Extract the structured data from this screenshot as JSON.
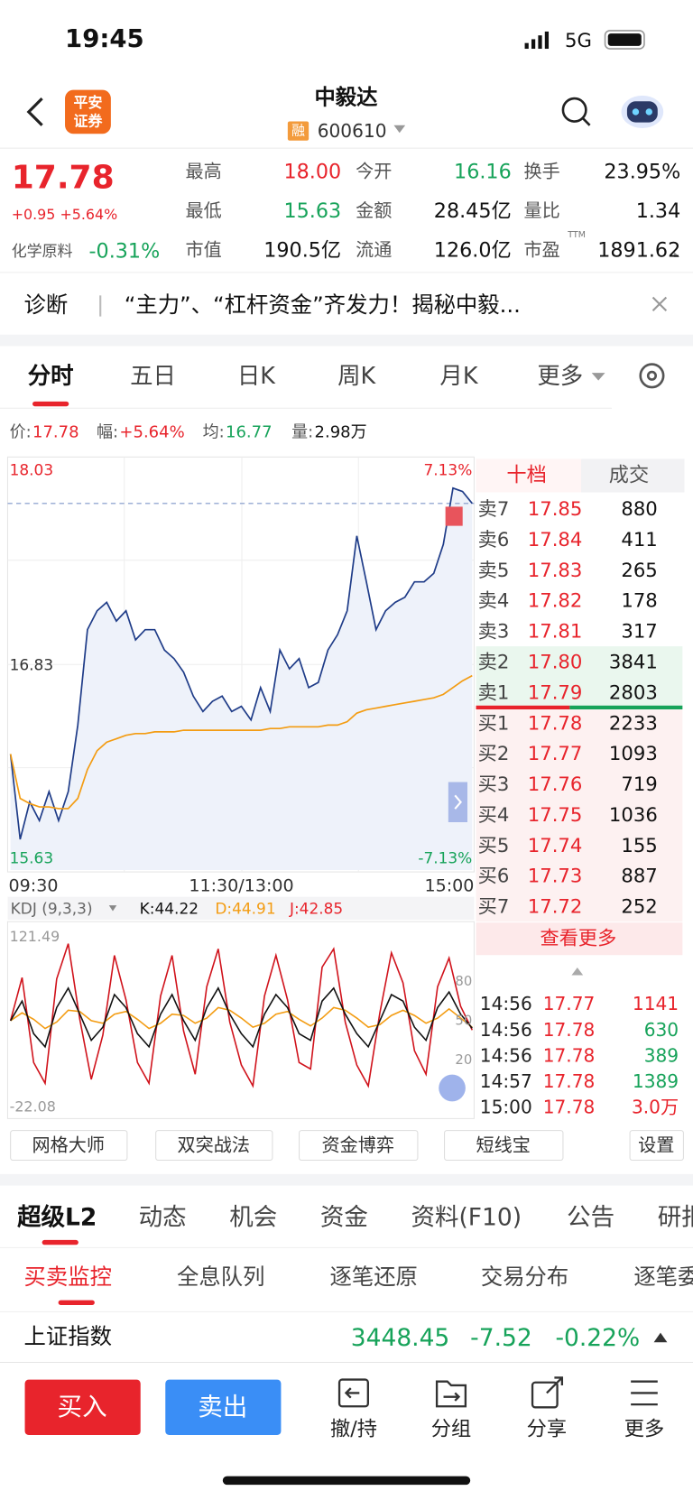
{
  "status_bar": {
    "time": "19:45",
    "network": "5G"
  },
  "header": {
    "logo": [
      "平安",
      "证券"
    ],
    "title": "中毅达",
    "tag": "融",
    "code": "600610"
  },
  "quote": {
    "price": "17.78",
    "change": "+0.95 +5.64%",
    "sector": "化学原料",
    "sector_change": "-0.31%",
    "stats": [
      [
        "最高",
        "18.00"
      ],
      [
        "今开",
        "16.16"
      ],
      [
        "换手",
        "23.95%"
      ],
      [
        "最低",
        "15.63"
      ],
      [
        "金额",
        "28.45亿"
      ],
      [
        "量比",
        "1.34"
      ],
      [
        "市值",
        "190.5亿"
      ],
      [
        "流通",
        "126.0亿"
      ],
      [
        "市盈",
        "1891.62"
      ]
    ],
    "ttm": "TTM"
  },
  "news": {
    "label": "诊断",
    "text": "“主力”、“杠杆资金”齐发力！揭秘中毅..."
  },
  "chart_tabs": [
    "分时",
    "五日",
    "日K",
    "周K",
    "月K",
    "更多"
  ],
  "summary": [
    [
      "价:",
      "17.78"
    ],
    [
      "幅:",
      "+5.64%"
    ],
    [
      "均:",
      "16.77"
    ],
    [
      "量:",
      "2.98万"
    ]
  ],
  "price_chart": {
    "type": "line",
    "xlim": [
      0,
      240
    ],
    "xticks": [
      {
        "value": 0,
        "label": "09:30"
      },
      {
        "value": 120,
        "label": "11:30/13:00"
      },
      {
        "value": 240,
        "label": "15:00"
      }
    ],
    "ylim": [
      15.63,
      18.03
    ],
    "yticks": [
      16.83
    ],
    "y2lim": [
      -7.13,
      7.13
    ],
    "y2ticks": [
      {
        "value": -7.13,
        "label": "-7.13%"
      },
      {
        "value": 7.13,
        "label": "7.13%"
      }
    ],
    "x": [
      0,
      5,
      10,
      15,
      20,
      25,
      30,
      35,
      40,
      45,
      50,
      55,
      60,
      65,
      70,
      75,
      80,
      85,
      90,
      95,
      100,
      105,
      110,
      115,
      120,
      125,
      130,
      135,
      140,
      145,
      150,
      155,
      160,
      165,
      170,
      175,
      180,
      185,
      190,
      195,
      200,
      205,
      210,
      215,
      220,
      225,
      230,
      235,
      240
    ],
    "series": [
      {
        "color": "#1f3c88",
        "values": [
          16.31,
          15.81,
          16.03,
          15.92,
          16.09,
          15.92,
          16.09,
          16.48,
          17.04,
          17.15,
          17.2,
          17.09,
          17.15,
          16.98,
          17.04,
          17.04,
          16.92,
          16.87,
          16.79,
          16.65,
          16.56,
          16.62,
          16.65,
          16.56,
          16.59,
          16.51,
          16.7,
          16.56,
          16.92,
          16.81,
          16.87,
          16.7,
          16.73,
          16.92,
          17.01,
          17.15,
          17.59,
          17.32,
          17.04,
          17.15,
          17.2,
          17.23,
          17.32,
          17.32,
          17.37,
          17.54,
          17.87,
          17.85,
          17.78
        ]
      },
      {
        "color": "#f39c12",
        "values": [
          16.31,
          16.05,
          16.02,
          16.0,
          16.0,
          15.99,
          15.99,
          16.05,
          16.22,
          16.33,
          16.38,
          16.4,
          16.42,
          16.43,
          16.43,
          16.44,
          16.44,
          16.44,
          16.45,
          16.45,
          16.45,
          16.45,
          16.45,
          16.45,
          16.45,
          16.45,
          16.45,
          16.46,
          16.46,
          16.47,
          16.47,
          16.47,
          16.47,
          16.48,
          16.48,
          16.5,
          16.55,
          16.57,
          16.58,
          16.59,
          16.6,
          16.61,
          16.62,
          16.63,
          16.64,
          16.66,
          16.7,
          16.74,
          16.77
        ]
      }
    ]
  },
  "kdj_chart": {
    "type": "line",
    "title": "KDJ (9,3,3)",
    "xlim": [
      0,
      240
    ],
    "ylim": [
      -22.08,
      121.49
    ],
    "yticks": [
      20,
      50,
      80
    ],
    "x": [
      0,
      6,
      12,
      18,
      24,
      30,
      36,
      42,
      48,
      54,
      60,
      66,
      72,
      78,
      84,
      90,
      96,
      102,
      108,
      114,
      120,
      126,
      132,
      138,
      144,
      150,
      156,
      162,
      168,
      174,
      180,
      186,
      192,
      198,
      204,
      210,
      216,
      222,
      228,
      234,
      240
    ],
    "series": [
      {
        "label": "K:44.22",
        "color": "#111111",
        "values": [
          50,
          65,
          40,
          30,
          60,
          75,
          55,
          35,
          45,
          70,
          60,
          40,
          30,
          55,
          70,
          50,
          35,
          60,
          75,
          55,
          40,
          30,
          55,
          70,
          60,
          40,
          35,
          65,
          75,
          55,
          40,
          30,
          50,
          70,
          65,
          45,
          35,
          60,
          72,
          55,
          44.22
        ]
      },
      {
        "label": "D:44.91",
        "color": "#f39c12",
        "values": [
          50,
          56,
          51,
          44,
          49,
          58,
          57,
          50,
          48,
          55,
          57,
          51,
          44,
          48,
          55,
          54,
          48,
          52,
          60,
          58,
          52,
          45,
          48,
          55,
          57,
          51,
          46,
          52,
          60,
          58,
          52,
          45,
          47,
          54,
          58,
          54,
          48,
          52,
          59,
          52,
          44.91
        ]
      },
      {
        "label": "J:42.85",
        "color": "#d0121b",
        "values": [
          50,
          83,
          18,
          2,
          82,
          109,
          51,
          5,
          39,
          100,
          66,
          18,
          2,
          69,
          100,
          42,
          9,
          76,
          105,
          49,
          16,
          0,
          69,
          100,
          66,
          18,
          13,
          91,
          105,
          49,
          16,
          0,
          56,
          102,
          79,
          27,
          9,
          76,
          98,
          61,
          42.85
        ]
      }
    ]
  },
  "order_book": {
    "tabs": [
      "十档",
      "成交"
    ],
    "asks": [
      [
        "卖7",
        "17.85",
        "880"
      ],
      [
        "卖6",
        "17.84",
        "411"
      ],
      [
        "卖5",
        "17.83",
        "265"
      ],
      [
        "卖4",
        "17.82",
        "178"
      ],
      [
        "卖3",
        "17.81",
        "317"
      ],
      [
        "卖2",
        "17.80",
        "3841"
      ],
      [
        "卖1",
        "17.79",
        "2803"
      ]
    ],
    "bids": [
      [
        "买1",
        "17.78",
        "2233"
      ],
      [
        "买2",
        "17.77",
        "1093"
      ],
      [
        "买3",
        "17.76",
        "719"
      ],
      [
        "买4",
        "17.75",
        "1036"
      ],
      [
        "买5",
        "17.74",
        "155"
      ],
      [
        "买6",
        "17.73",
        "887"
      ],
      [
        "买7",
        "17.72",
        "252"
      ]
    ],
    "more": "查看更多",
    "trades": [
      [
        "14:56",
        "17.77",
        "1141"
      ],
      [
        "14:56",
        "17.78",
        "630"
      ],
      [
        "14:56",
        "17.78",
        "389"
      ],
      [
        "14:57",
        "17.78",
        "1389"
      ],
      [
        "15:00",
        "17.78",
        "3.0万"
      ]
    ]
  },
  "tools": [
    "网格大师",
    "双突战法",
    "资金博弈",
    "短线宝",
    "设置"
  ],
  "tabs": [
    "超级L2",
    "动态",
    "机会",
    "资金",
    "资料(F10)",
    "公告",
    "研报"
  ],
  "sub_tabs": [
    "买卖监控",
    "全息队列",
    "逐笔还原",
    "交易分布",
    "逐笔委托"
  ],
  "index": {
    "name": "上证指数",
    "value": "3448.45",
    "change": "-7.52",
    "pct": "-0.22%"
  },
  "actions": {
    "buy": "买入",
    "sell": "卖出",
    "tools": [
      "撤/持",
      "分组",
      "分享",
      "更多"
    ]
  }
}
